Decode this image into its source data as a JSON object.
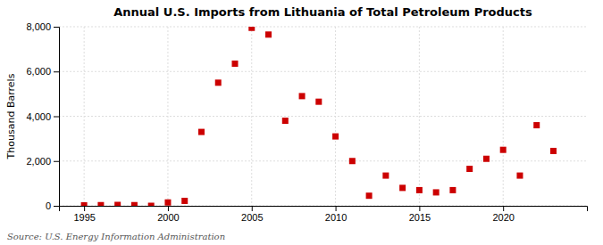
{
  "chart_data": {
    "type": "scatter",
    "title": "Annual U.S. Imports from Lithuania of Total Petroleum Products",
    "y_label": "Thousand Barrels",
    "annotations": [
      "Source: U.S. Energy Information Administration"
    ],
    "x": [
      1995,
      1996,
      1997,
      1998,
      1999,
      2000,
      2001,
      2002,
      2003,
      2004,
      2005,
      2006,
      2007,
      2008,
      2009,
      2010,
      2011,
      2012,
      2013,
      2014,
      2015,
      2016,
      2017,
      2018,
      2019,
      2020,
      2021,
      2022,
      2023
    ],
    "values": [
      20,
      30,
      40,
      30,
      0,
      150,
      220,
      3300,
      5500,
      6350,
      7950,
      7650,
      3800,
      4900,
      4650,
      3100,
      2000,
      450,
      1350,
      800,
      700,
      600,
      700,
      1650,
      2100,
      2500,
      1350,
      3600,
      2450
    ],
    "xlim": [
      1993.5,
      2025
    ],
    "ylim": [
      0,
      8000
    ],
    "xticks": [
      1995,
      2000,
      2005,
      2010,
      2015,
      2020
    ],
    "yticks": [
      0,
      {
        "value": 2000,
        "label": "2,000"
      },
      {
        "value": 4000,
        "label": "4,000"
      },
      {
        "value": 6000,
        "label": "6,000"
      },
      {
        "value": 8000,
        "label": "8,000"
      }
    ],
    "color": "#cc0000",
    "marker": "square",
    "grid": true
  }
}
